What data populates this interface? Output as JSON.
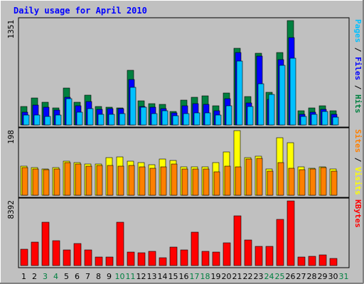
{
  "chart_data": [
    {
      "type": "bar",
      "title": "Daily usage for April 2010",
      "categories": [
        "1",
        "2",
        "3",
        "4",
        "5",
        "6",
        "7",
        "8",
        "9",
        "10",
        "11",
        "12",
        "13",
        "14",
        "15",
        "16",
        "17",
        "18",
        "19",
        "20",
        "21",
        "22",
        "23",
        "24",
        "25",
        "26",
        "27",
        "28",
        "29",
        "30",
        "31"
      ],
      "weekend_days": [
        "3",
        "4",
        "10",
        "11",
        "17",
        "18",
        "24",
        "25",
        "31"
      ],
      "ylim": [
        0,
        1351
      ],
      "ymax_label": "1351",
      "right_label_parts": [
        "Pages",
        "Files",
        "Hits"
      ],
      "right_label_separator": " / ",
      "series": [
        {
          "name": "Hits",
          "color": "#008040",
          "values": [
            236,
            345,
            297,
            225,
            475,
            290,
            384,
            236,
            232,
            221,
            709,
            311,
            276,
            270,
            178,
            325,
            363,
            376,
            250,
            411,
            990,
            367,
            930,
            419,
            937,
            1351,
            185,
            223,
            245,
            181,
            0
          ]
        },
        {
          "name": "Files",
          "color": "#0000ff",
          "values": [
            161,
            261,
            230,
            192,
            357,
            251,
            304,
            204,
            209,
            211,
            589,
            238,
            232,
            214,
            156,
            250,
            276,
            268,
            186,
            342,
            939,
            287,
            888,
            331,
            841,
            1134,
            141,
            165,
            205,
            136,
            0
          ]
        },
        {
          "name": "Pages",
          "color": "#00c0ff",
          "values": [
            130,
            130,
            106,
            130,
            337,
            162,
            209,
            135,
            138,
            146,
            485,
            227,
            149,
            181,
            123,
            146,
            157,
            153,
            128,
            244,
            830,
            242,
            532,
            399,
            775,
            865,
            106,
            137,
            173,
            100,
            0
          ]
        }
      ]
    },
    {
      "type": "bar",
      "categories": [
        "1",
        "2",
        "3",
        "4",
        "5",
        "6",
        "7",
        "8",
        "9",
        "10",
        "11",
        "12",
        "13",
        "14",
        "15",
        "16",
        "17",
        "18",
        "19",
        "20",
        "21",
        "22",
        "23",
        "24",
        "25",
        "26",
        "27",
        "28",
        "29",
        "30",
        "31"
      ],
      "ylim": [
        0,
        198
      ],
      "ymax_label": "198",
      "right_label_parts": [
        "Sites",
        "Visits"
      ],
      "right_label_separator": " / ",
      "series": [
        {
          "name": "Visits",
          "color": "#ffff00",
          "values": [
            90,
            85,
            80,
            85,
            104,
            100,
            95,
            96,
            116,
            118,
            104,
            99,
            93,
            111,
            106,
            86,
            88,
            86,
            99,
            133,
            198,
            116,
            119,
            80,
            177,
            160,
            86,
            83,
            88,
            81,
            0
          ]
        },
        {
          "name": "Sites",
          "color": "#ff8000",
          "values": [
            84,
            80,
            79,
            80,
            100,
            96,
            90,
            92,
            91,
            90,
            92,
            88,
            83,
            88,
            96,
            80,
            81,
            80,
            71,
            90,
            88,
            110,
            114,
            73,
            100,
            83,
            78,
            80,
            84,
            74,
            0
          ]
        }
      ]
    },
    {
      "type": "bar",
      "categories": [
        "1",
        "2",
        "3",
        "4",
        "5",
        "6",
        "7",
        "8",
        "9",
        "10",
        "11",
        "12",
        "13",
        "14",
        "15",
        "16",
        "17",
        "18",
        "19",
        "20",
        "21",
        "22",
        "23",
        "24",
        "25",
        "26",
        "27",
        "28",
        "29",
        "30",
        "31"
      ],
      "ylim": [
        0,
        8392
      ],
      "ymax_label": "8392",
      "right_label_parts": [
        "KBytes"
      ],
      "right_label_separator": " / ",
      "series": [
        {
          "name": "KBytes",
          "color": "#ff0000",
          "values": [
            2150,
            3022,
            5649,
            3225,
            2061,
            2822,
            2023,
            1065,
            1065,
            5649,
            1763,
            1662,
            1813,
            1007,
            2420,
            2059,
            4353,
            1864,
            1714,
            2987,
            6451,
            3312,
            2486,
            2486,
            6029,
            8392,
            1065,
            1196,
            1364,
            925,
            0
          ]
        }
      ]
    }
  ],
  "colors": {
    "background": "#c0c0c0",
    "title": "#0000ff",
    "text": "#000000",
    "weekend": "#008040",
    "pages": "#00c0ff",
    "files": "#0000ff",
    "hits": "#008040",
    "sites": "#ff8000",
    "visits": "#ffff00",
    "kbytes": "#ff0000"
  }
}
